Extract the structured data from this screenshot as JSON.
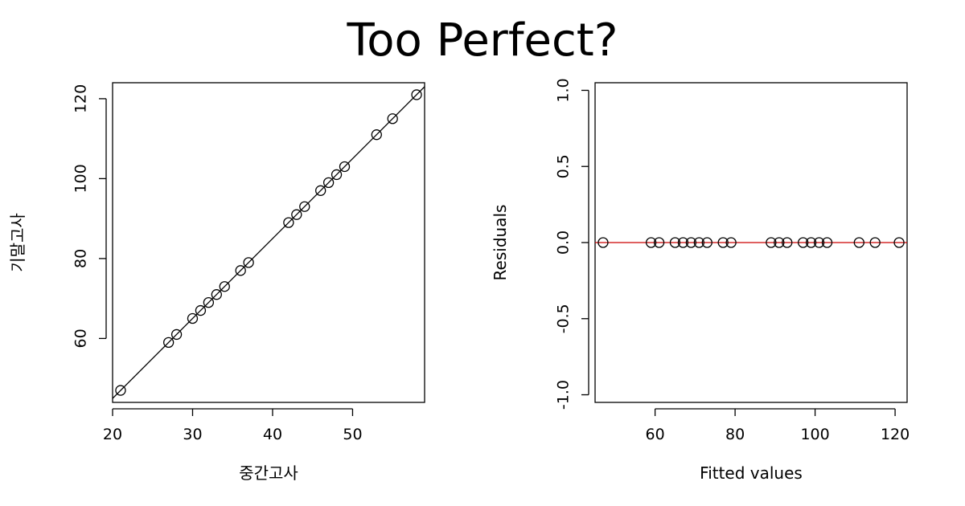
{
  "title": "Too Perfect?",
  "chart_data": [
    {
      "type": "scatter",
      "xlabel": "중간고사",
      "ylabel": "기말고사",
      "xlim": [
        20,
        59
      ],
      "ylim": [
        44,
        124
      ],
      "x_ticks": [
        20,
        30,
        40,
        50
      ],
      "y_ticks": [
        60,
        80,
        100,
        120
      ],
      "points": [
        [
          21,
          47
        ],
        [
          27,
          59
        ],
        [
          28,
          61
        ],
        [
          30,
          65
        ],
        [
          31,
          67
        ],
        [
          32,
          69
        ],
        [
          33,
          71
        ],
        [
          34,
          73
        ],
        [
          36,
          77
        ],
        [
          37,
          79
        ],
        [
          42,
          89
        ],
        [
          43,
          91
        ],
        [
          44,
          93
        ],
        [
          46,
          97
        ],
        [
          47,
          99
        ],
        [
          48,
          101
        ],
        [
          49,
          103
        ],
        [
          53,
          111
        ],
        [
          55,
          115
        ],
        [
          58,
          121
        ]
      ],
      "fit_line": {
        "intercept": 5,
        "slope": 2,
        "color": "#000000"
      },
      "grid": false
    },
    {
      "type": "scatter",
      "xlabel": "Fitted values",
      "ylabel": "Residuals",
      "xlim": [
        45,
        123
      ],
      "ylim": [
        -1.05,
        1.05
      ],
      "x_ticks": [
        60,
        80,
        100,
        120
      ],
      "y_ticks": [
        -1.0,
        -0.5,
        0.0,
        0.5,
        1.0
      ],
      "y_tick_labels": [
        "-1.0",
        "-0.5",
        "0.0",
        "0.5",
        "1.0"
      ],
      "points": [
        [
          47,
          0
        ],
        [
          59,
          0
        ],
        [
          61,
          0
        ],
        [
          65,
          0
        ],
        [
          67,
          0
        ],
        [
          69,
          0
        ],
        [
          71,
          0
        ],
        [
          73,
          0
        ],
        [
          77,
          0
        ],
        [
          79,
          0
        ],
        [
          89,
          0
        ],
        [
          91,
          0
        ],
        [
          93,
          0
        ],
        [
          97,
          0
        ],
        [
          99,
          0
        ],
        [
          101,
          0
        ],
        [
          103,
          0
        ],
        [
          111,
          0
        ],
        [
          115,
          0
        ],
        [
          121,
          0
        ]
      ],
      "reference_line": {
        "y": 0,
        "color": "#cc0000"
      },
      "grid": false
    }
  ]
}
